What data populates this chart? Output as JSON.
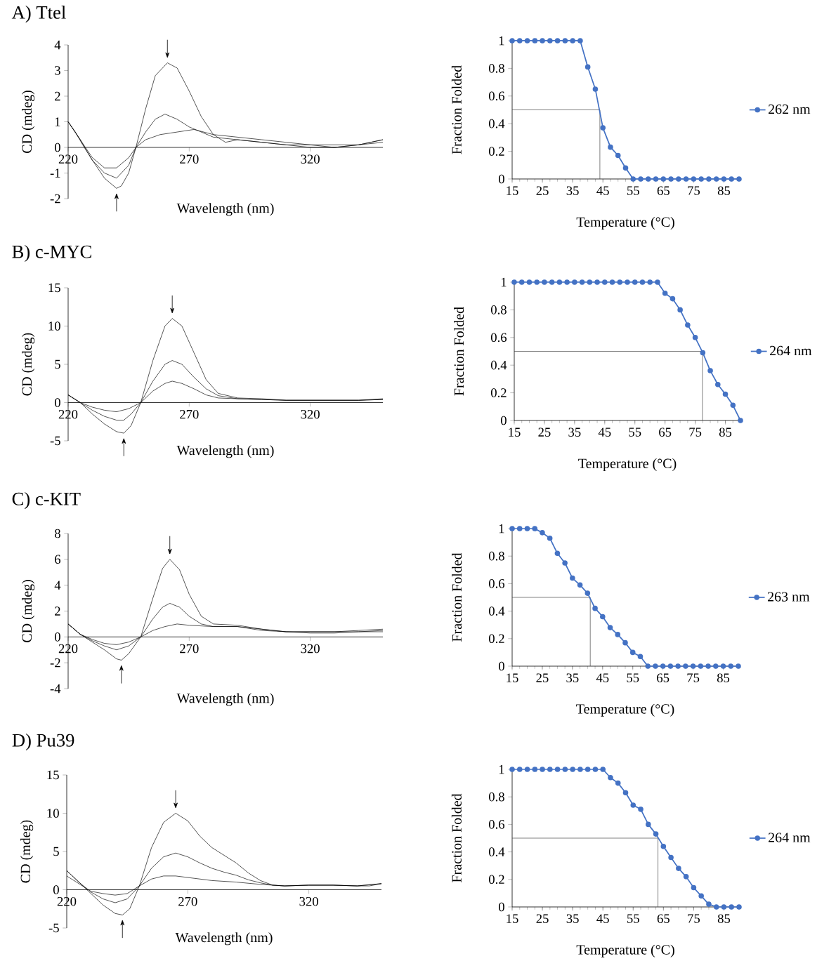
{
  "chart_data": [
    {
      "type": "line",
      "title": "A) Ttel",
      "xlabel": "Wavelength (nm)",
      "ylabel": "CD (mdeg)",
      "xlim": [
        220,
        350
      ],
      "xticks": [
        220,
        270,
        320
      ],
      "ylim": [
        -2,
        4
      ],
      "yticks": [
        -2,
        -1,
        0,
        1,
        2,
        3,
        4
      ],
      "series": [
        {
          "color": "#000000",
          "x": [
            220,
            223,
            226,
            230,
            235,
            240,
            242,
            245,
            248,
            252,
            256,
            261,
            265,
            270,
            275,
            280,
            285,
            290,
            300,
            310,
            320,
            330,
            340,
            350
          ],
          "values": [
            1.0,
            0.6,
            0.1,
            -0.5,
            -1.2,
            -1.6,
            -1.5,
            -1.0,
            0.0,
            1.5,
            2.8,
            3.3,
            3.1,
            2.2,
            1.2,
            0.5,
            0.2,
            0.3,
            0.2,
            0.1,
            0.0,
            0.0,
            0.1,
            0.3
          ]
        },
        {
          "color": "#000000",
          "x": [
            220,
            225,
            230,
            235,
            240,
            245,
            248,
            252,
            256,
            260,
            265,
            270,
            275,
            280,
            290,
            300,
            310,
            320,
            330,
            340,
            350
          ],
          "values": [
            1.0,
            0.3,
            -0.5,
            -1.0,
            -1.2,
            -0.7,
            0.0,
            0.6,
            1.1,
            1.3,
            1.1,
            0.8,
            0.6,
            0.4,
            0.3,
            0.2,
            0.1,
            0.1,
            0.0,
            0.1,
            0.2
          ]
        },
        {
          "color": "#000000",
          "x": [
            220,
            225,
            230,
            235,
            240,
            245,
            248,
            252,
            258,
            265,
            272,
            280,
            290,
            300,
            310,
            320,
            330,
            340,
            350
          ],
          "values": [
            1.0,
            0.3,
            -0.4,
            -0.8,
            -0.8,
            -0.4,
            0.0,
            0.3,
            0.5,
            0.6,
            0.7,
            0.5,
            0.4,
            0.3,
            0.2,
            0.1,
            0.1,
            0.1,
            0.3
          ]
        }
      ]
    },
    {
      "type": "line",
      "xlabel": "Temperature (°C)",
      "ylabel": "Fraction Folded",
      "xlim": [
        15,
        90
      ],
      "xticks": [
        15,
        25,
        35,
        45,
        55,
        65,
        75,
        85
      ],
      "ylim": [
        0,
        1
      ],
      "yticks": [
        0,
        0.2,
        0.4,
        0.6,
        0.8,
        1
      ],
      "marker": "circle",
      "legend": "right",
      "ref_lines": [
        {
          "axis": "y",
          "value": 0.5,
          "color": "#404040"
        },
        {
          "axis": "x",
          "value": 44.0,
          "color": "#404040"
        }
      ],
      "series": [
        {
          "name": "262 nm",
          "color": "#4472c4",
          "x": [
            15,
            17.5,
            20,
            22.5,
            25,
            27.5,
            30,
            32.5,
            35,
            37.5,
            40,
            42.5,
            45,
            47.5,
            50,
            52.5,
            55,
            57.5,
            60,
            62.5,
            65,
            67.5,
            70,
            72.5,
            75,
            77.5,
            80,
            82.5,
            85,
            87.5,
            90
          ],
          "values": [
            1,
            1,
            1,
            1,
            1,
            1,
            1,
            1,
            1,
            1,
            0.81,
            0.65,
            0.37,
            0.23,
            0.17,
            0.08,
            0,
            0,
            0,
            0,
            0,
            0,
            0,
            0,
            0,
            0,
            0,
            0,
            0,
            0,
            0
          ]
        }
      ]
    },
    {
      "type": "line",
      "title": "B) c-MYC",
      "xlabel": "Wavelength (nm)",
      "ylabel": "CD (mdeg)",
      "xlim": [
        220,
        350
      ],
      "xticks": [
        220,
        270,
        320
      ],
      "ylim": [
        -5,
        15
      ],
      "yticks": [
        -5,
        0,
        5,
        10,
        15
      ],
      "series": [
        {
          "color": "#000000",
          "x": [
            220,
            225,
            230,
            235,
            240,
            243,
            246,
            250,
            255,
            260,
            263,
            267,
            272,
            277,
            282,
            290,
            300,
            310,
            320,
            330,
            340,
            350
          ],
          "values": [
            1.0,
            0.0,
            -1.5,
            -2.8,
            -3.8,
            -4.0,
            -3.0,
            0.0,
            5.5,
            10.0,
            11.0,
            10.0,
            6.5,
            3.0,
            1.2,
            0.6,
            0.5,
            0.3,
            0.3,
            0.3,
            0.3,
            0.5
          ]
        },
        {
          "color": "#000000",
          "x": [
            220,
            225,
            230,
            235,
            240,
            243,
            246,
            250,
            255,
            260,
            263,
            267,
            272,
            277,
            282,
            290,
            300,
            310,
            320,
            330,
            340,
            350
          ],
          "values": [
            1.0,
            0.0,
            -1.0,
            -1.8,
            -2.3,
            -2.3,
            -1.5,
            0.0,
            2.8,
            5.0,
            5.5,
            5.0,
            3.3,
            1.8,
            0.9,
            0.5,
            0.4,
            0.3,
            0.3,
            0.3,
            0.3,
            0.4
          ]
        },
        {
          "color": "#000000",
          "x": [
            220,
            225,
            230,
            235,
            240,
            245,
            250,
            255,
            260,
            263,
            267,
            272,
            277,
            282,
            290,
            300,
            310,
            320,
            330,
            340,
            350
          ],
          "values": [
            1.0,
            0.0,
            -0.6,
            -1.0,
            -1.2,
            -0.8,
            0.0,
            1.5,
            2.5,
            2.8,
            2.5,
            1.8,
            1.0,
            0.6,
            0.5,
            0.4,
            0.3,
            0.3,
            0.3,
            0.3,
            0.4
          ]
        }
      ]
    },
    {
      "type": "line",
      "xlabel": "Temperature (°C)",
      "ylabel": "Fraction Folded",
      "xlim": [
        15,
        90
      ],
      "xticks": [
        15,
        25,
        35,
        45,
        55,
        65,
        75,
        85
      ],
      "ylim": [
        0,
        1
      ],
      "yticks": [
        0,
        0.2,
        0.4,
        0.6,
        0.8,
        1
      ],
      "marker": "circle",
      "legend": "right",
      "ref_lines": [
        {
          "axis": "y",
          "value": 0.5,
          "color": "#404040"
        },
        {
          "axis": "x",
          "value": 77.4,
          "color": "#404040"
        }
      ],
      "series": [
        {
          "name": "264 nm",
          "color": "#4472c4",
          "x": [
            15,
            17.5,
            20,
            22.5,
            25,
            27.5,
            30,
            32.5,
            35,
            37.5,
            40,
            42.5,
            45,
            47.5,
            50,
            52.5,
            55,
            57.5,
            60,
            62.5,
            65,
            67.5,
            70,
            72.5,
            75,
            77.5,
            80,
            82.5,
            85,
            87.5,
            90
          ],
          "values": [
            1,
            1,
            1,
            1,
            1,
            1,
            1,
            1,
            1,
            1,
            1,
            1,
            1,
            1,
            1,
            1,
            1,
            1,
            1,
            1,
            0.92,
            0.88,
            0.8,
            0.69,
            0.6,
            0.49,
            0.36,
            0.26,
            0.19,
            0.11,
            0
          ]
        }
      ]
    },
    {
      "type": "line",
      "title": "C) c-KIT",
      "xlabel": "Wavelength (nm)",
      "ylabel": "CD (mdeg)",
      "xlim": [
        220,
        350
      ],
      "xticks": [
        220,
        270,
        320
      ],
      "ylim": [
        -4,
        8
      ],
      "yticks": [
        -4,
        -2,
        0,
        2,
        4,
        6,
        8
      ],
      "series": [
        {
          "color": "#000000",
          "x": [
            220,
            225,
            230,
            235,
            240,
            242,
            245,
            250,
            255,
            259,
            262,
            266,
            270,
            275,
            280,
            290,
            300,
            310,
            320,
            330,
            340,
            350
          ],
          "values": [
            1.0,
            0.2,
            -0.4,
            -1.0,
            -1.7,
            -1.8,
            -1.3,
            0.0,
            3.0,
            5.3,
            6.0,
            5.2,
            3.3,
            1.6,
            1.0,
            0.9,
            0.6,
            0.4,
            0.4,
            0.4,
            0.5,
            0.6
          ]
        },
        {
          "color": "#000000",
          "x": [
            220,
            225,
            230,
            235,
            240,
            245,
            250,
            255,
            259,
            262,
            266,
            270,
            275,
            280,
            290,
            300,
            310,
            320,
            330,
            340,
            350
          ],
          "values": [
            1.0,
            0.2,
            -0.3,
            -0.7,
            -1.0,
            -0.7,
            0.0,
            1.4,
            2.3,
            2.6,
            2.3,
            1.6,
            1.0,
            0.8,
            0.8,
            0.6,
            0.4,
            0.4,
            0.4,
            0.4,
            0.5
          ]
        },
        {
          "color": "#000000",
          "x": [
            220,
            225,
            230,
            235,
            240,
            245,
            250,
            255,
            260,
            265,
            270,
            280,
            290,
            300,
            310,
            320,
            330,
            340,
            350
          ],
          "values": [
            1.0,
            0.2,
            -0.2,
            -0.5,
            -0.6,
            -0.4,
            0.0,
            0.5,
            0.8,
            1.0,
            0.9,
            0.8,
            0.8,
            0.5,
            0.4,
            0.3,
            0.3,
            0.4,
            0.4
          ]
        }
      ]
    },
    {
      "type": "line",
      "xlabel": "Temperature (°C)",
      "ylabel": "Fraction Folded",
      "xlim": [
        15,
        90
      ],
      "xticks": [
        15,
        25,
        35,
        45,
        55,
        65,
        75,
        85
      ],
      "ylim": [
        0,
        1
      ],
      "yticks": [
        0,
        0.2,
        0.4,
        0.6,
        0.8,
        1
      ],
      "marker": "circle",
      "legend": "right",
      "ref_lines": [
        {
          "axis": "y",
          "value": 0.5,
          "color": "#404040"
        },
        {
          "axis": "x",
          "value": 40.9,
          "color": "#404040"
        }
      ],
      "series": [
        {
          "name": "263 nm",
          "color": "#4472c4",
          "x": [
            15,
            17.5,
            20,
            22.5,
            25,
            27.5,
            30,
            32.5,
            35,
            37.5,
            40,
            42.5,
            45,
            47.5,
            50,
            52.5,
            55,
            57.5,
            60,
            62.5,
            65,
            67.5,
            70,
            72.5,
            75,
            77.5,
            80,
            82.5,
            85,
            87.5,
            90
          ],
          "values": [
            1,
            1,
            1,
            1,
            0.97,
            0.93,
            0.82,
            0.75,
            0.64,
            0.59,
            0.53,
            0.42,
            0.36,
            0.28,
            0.23,
            0.17,
            0.1,
            0.07,
            0,
            0,
            0,
            0,
            0,
            0,
            0,
            0,
            0,
            0,
            0,
            0,
            0
          ]
        }
      ]
    },
    {
      "type": "line",
      "title": "D) Pu39",
      "xlabel": "Wavelength (nm)",
      "ylabel": "CD (mdeg)",
      "xlim": [
        220,
        350
      ],
      "xticks": [
        220,
        270,
        320
      ],
      "ylim": [
        -5,
        15
      ],
      "yticks": [
        -5,
        0,
        5,
        10,
        15
      ],
      "series": [
        {
          "color": "#000000",
          "x": [
            220,
            225,
            230,
            235,
            240,
            243,
            246,
            250,
            255,
            260,
            265,
            270,
            275,
            280,
            285,
            290,
            295,
            300,
            305,
            310,
            320,
            330,
            340,
            345,
            350
          ],
          "values": [
            2.5,
            1.0,
            -0.5,
            -2.0,
            -3.1,
            -3.3,
            -2.5,
            0.5,
            5.5,
            8.8,
            10.0,
            9.0,
            7.0,
            5.5,
            4.5,
            3.5,
            2.2,
            1.2,
            0.6,
            0.5,
            0.6,
            0.6,
            0.5,
            0.5,
            0.8
          ]
        },
        {
          "color": "#000000",
          "x": [
            220,
            225,
            230,
            235,
            240,
            245,
            250,
            255,
            260,
            265,
            270,
            275,
            280,
            285,
            290,
            295,
            300,
            305,
            310,
            320,
            330,
            340,
            350
          ],
          "values": [
            2.5,
            1.0,
            -0.3,
            -1.2,
            -1.7,
            -1.2,
            0.5,
            2.8,
            4.3,
            4.8,
            4.3,
            3.5,
            2.8,
            2.3,
            1.9,
            1.3,
            0.9,
            0.6,
            0.5,
            0.6,
            0.6,
            0.5,
            0.8
          ]
        },
        {
          "color": "#000000",
          "x": [
            220,
            225,
            230,
            235,
            240,
            245,
            250,
            255,
            260,
            265,
            270,
            280,
            290,
            300,
            310,
            320,
            330,
            340,
            350
          ],
          "values": [
            1.8,
            0.8,
            -0.2,
            -0.5,
            -0.7,
            -0.5,
            0.5,
            1.4,
            1.8,
            1.8,
            1.6,
            1.2,
            1.0,
            0.7,
            0.5,
            0.6,
            0.6,
            0.5,
            0.8
          ]
        }
      ]
    },
    {
      "type": "line",
      "xlabel": "Temperature (°C)",
      "ylabel": "Fraction Folded",
      "xlim": [
        15,
        90
      ],
      "xticks": [
        15,
        25,
        35,
        45,
        55,
        65,
        75,
        85
      ],
      "ylim": [
        0,
        1
      ],
      "yticks": [
        0,
        0.2,
        0.4,
        0.6,
        0.8,
        1
      ],
      "marker": "circle",
      "legend": "right",
      "ref_lines": [
        {
          "axis": "y",
          "value": 0.5,
          "color": "#404040"
        },
        {
          "axis": "x",
          "value": 63.2,
          "color": "#404040"
        }
      ],
      "series": [
        {
          "name": "264 nm",
          "color": "#4472c4",
          "x": [
            15,
            17.5,
            20,
            22.5,
            25,
            27.5,
            30,
            32.5,
            35,
            37.5,
            40,
            42.5,
            45,
            47.5,
            50,
            52.5,
            55,
            57.5,
            60,
            62.5,
            65,
            67.5,
            70,
            72.5,
            75,
            77.5,
            80,
            82.5,
            85,
            87.5,
            90
          ],
          "values": [
            1,
            1,
            1,
            1,
            1,
            1,
            1,
            1,
            1,
            1,
            1,
            1,
            1,
            0.94,
            0.9,
            0.83,
            0.74,
            0.71,
            0.6,
            0.53,
            0.44,
            0.36,
            0.28,
            0.22,
            0.14,
            0.08,
            0.02,
            0,
            0,
            0,
            0
          ]
        }
      ]
    }
  ]
}
